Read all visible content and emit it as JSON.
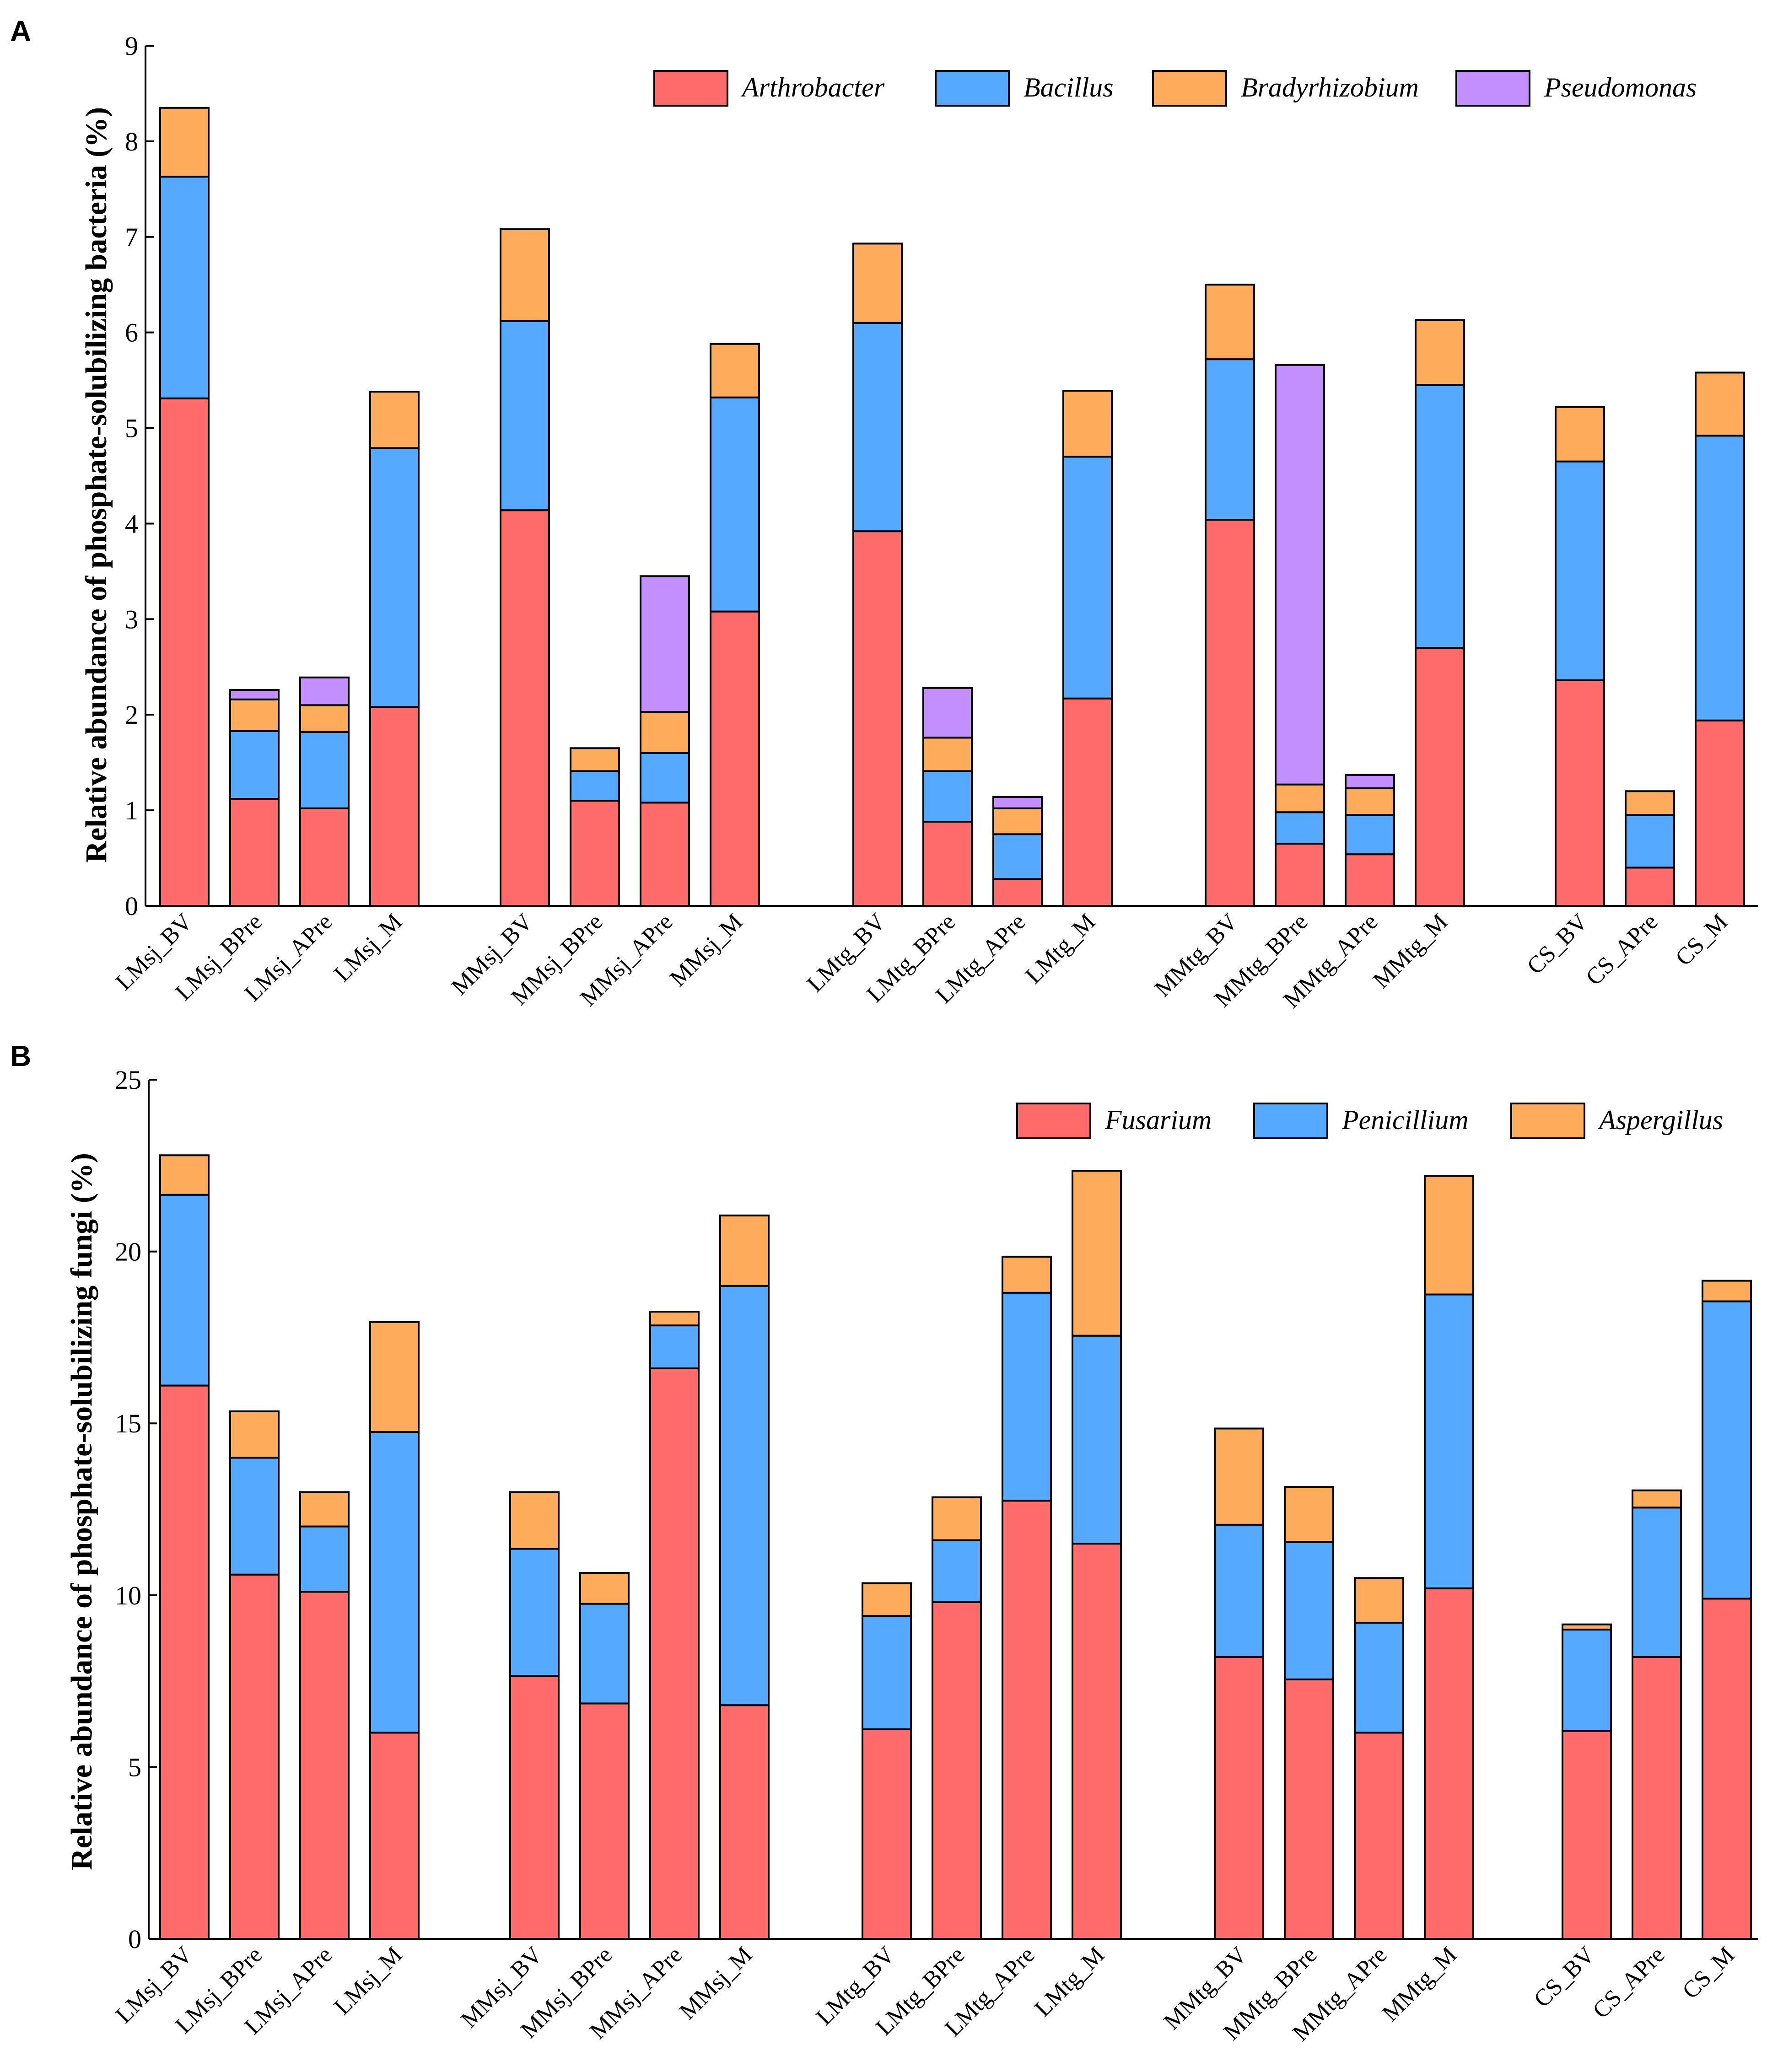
{
  "chart_data": [
    {
      "type": "bar",
      "stacked": true,
      "panel": "A",
      "ylabel": "Relative abundance of phosphate-solubilizing bacteria (%)",
      "ylim": [
        0,
        9
      ],
      "yticks": [
        0,
        1,
        2,
        3,
        4,
        5,
        6,
        7,
        8,
        9
      ],
      "legend_position": "top-right",
      "groups": [
        [
          "LMsj_BV",
          "LMsj_BPre",
          "LMsj_APre",
          "LMsj_M"
        ],
        [
          "MMsj_BV",
          "MMsj_BPre",
          "MMsj_APre",
          "MMsj_M"
        ],
        [
          "LMtg_BV",
          "LMtg_BPre",
          "LMtg_APre",
          "LMtg_M"
        ],
        [
          "MMtg_BV",
          "MMtg_BPre",
          "MMtg_APre",
          "MMtg_M"
        ],
        [
          "CS_BV",
          "CS_APre",
          "CS_M"
        ]
      ],
      "series": [
        {
          "name": "Arthrobacter",
          "color": "#FF6B6B",
          "values": [
            5.31,
            1.12,
            1.02,
            2.08,
            4.14,
            1.1,
            1.08,
            3.08,
            3.92,
            0.88,
            0.28,
            2.17,
            4.04,
            0.65,
            0.54,
            2.7,
            2.36,
            0.4,
            1.94
          ]
        },
        {
          "name": "Bacillus",
          "color": "#55AAFF",
          "values": [
            2.32,
            0.71,
            0.8,
            2.71,
            1.98,
            0.31,
            0.52,
            2.24,
            2.18,
            0.53,
            0.47,
            2.53,
            1.68,
            0.33,
            0.41,
            2.75,
            2.29,
            0.55,
            2.98
          ]
        },
        {
          "name": "Bradyrhizobium",
          "color": "#FFAB5C",
          "values": [
            0.72,
            0.33,
            0.28,
            0.59,
            0.96,
            0.24,
            0.43,
            0.56,
            0.83,
            0.35,
            0.27,
            0.69,
            0.78,
            0.29,
            0.28,
            0.68,
            0.57,
            0.25,
            0.66
          ]
        },
        {
          "name": "Pseudomonas",
          "color": "#C38FFF",
          "values": [
            0,
            0.1,
            0.29,
            0,
            0,
            0,
            1.42,
            0,
            0,
            0.52,
            0.12,
            0,
            0,
            4.39,
            0.14,
            0,
            0,
            0,
            0
          ]
        }
      ]
    },
    {
      "type": "bar",
      "stacked": true,
      "panel": "B",
      "ylabel": "Relative abundance of phosphate-solubilizing fungi (%)",
      "ylim": [
        0,
        25
      ],
      "yticks": [
        0,
        5,
        10,
        15,
        20,
        25
      ],
      "legend_position": "top-right",
      "groups": [
        [
          "LMsj_BV",
          "LMsj_BPre",
          "LMsj_APre",
          "LMsj_M"
        ],
        [
          "MMsj_BV",
          "MMsj_BPre",
          "MMsj_APre",
          "MMsj_M"
        ],
        [
          "LMtg_BV",
          "LMtg_BPre",
          "LMtg_APre",
          "LMtg_M"
        ],
        [
          "MMtg_BV",
          "MMtg_BPre",
          "MMtg_APre",
          "MMtg_M"
        ],
        [
          "CS_BV",
          "CS_APre",
          "CS_M"
        ]
      ],
      "series": [
        {
          "name": "Fusarium",
          "color": "#FF6B6B",
          "values": [
            16.1,
            10.6,
            10.1,
            6.0,
            7.65,
            6.85,
            16.6,
            6.8,
            6.1,
            9.8,
            12.75,
            11.5,
            8.2,
            7.55,
            6.0,
            10.2,
            6.05,
            8.2,
            9.9
          ]
        },
        {
          "name": "Penicillium",
          "color": "#55AAFF",
          "values": [
            5.55,
            3.4,
            1.9,
            8.75,
            3.7,
            2.9,
            1.25,
            12.2,
            3.3,
            1.8,
            6.05,
            6.05,
            3.85,
            4.0,
            3.2,
            8.55,
            2.95,
            4.35,
            8.65
          ]
        },
        {
          "name": "Aspergillus",
          "color": "#FFAB5C",
          "values": [
            1.15,
            1.35,
            1.0,
            3.2,
            1.65,
            0.9,
            0.4,
            2.05,
            0.95,
            1.25,
            1.05,
            4.8,
            2.8,
            1.6,
            1.3,
            3.45,
            0.15,
            0.5,
            0.6
          ]
        }
      ]
    }
  ]
}
